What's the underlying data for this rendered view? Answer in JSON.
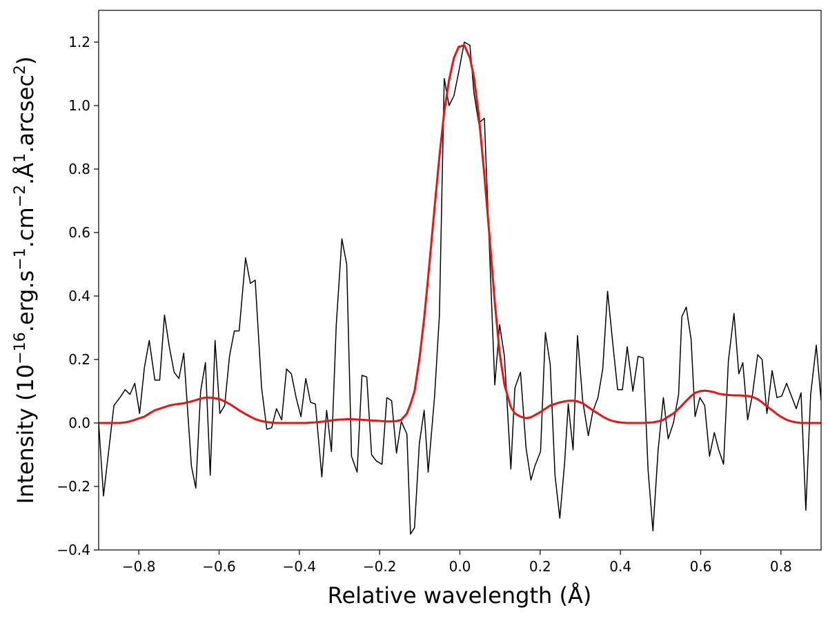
{
  "chart_data": {
    "type": "line",
    "xlabel": "Relative wavelength (Å)",
    "ylabel": [
      {
        "text": "Intensity (10"
      },
      {
        "text": "−16",
        "sup": true
      },
      {
        "text": ".erg.s"
      },
      {
        "text": "−1",
        "sup": true
      },
      {
        "text": ".cm"
      },
      {
        "text": "−2",
        "sup": true
      },
      {
        "text": ".Å"
      },
      {
        "text": "1",
        "sup": true
      },
      {
        "text": ".arcsec"
      },
      {
        "text": "2",
        "sup": true
      },
      {
        "text": ")"
      }
    ],
    "xlim": [
      -0.9,
      0.9
    ],
    "ylim": [
      -0.4,
      1.3
    ],
    "xticks": [
      {
        "value": -0.8,
        "label": "−0.8"
      },
      {
        "value": -0.6,
        "label": "−0.6"
      },
      {
        "value": -0.4,
        "label": "−0.4"
      },
      {
        "value": -0.2,
        "label": "−0.2"
      },
      {
        "value": 0,
        "label": "0.0"
      },
      0.2,
      0.4,
      0.6,
      0.8
    ],
    "yticks": [
      {
        "value": -0.4,
        "label": "−0.4"
      },
      {
        "value": -0.2,
        "label": "−0.2"
      },
      {
        "value": 0,
        "label": "0.0"
      },
      0.2,
      0.4,
      0.6,
      0.8,
      {
        "value": 1,
        "label": "1.0"
      },
      1.2
    ],
    "grid": false,
    "x": [
      -0.9,
      -0.888,
      -0.878,
      -0.862,
      -0.847,
      -0.834,
      -0.822,
      -0.81,
      -0.798,
      -0.786,
      -0.774,
      -0.76,
      -0.748,
      -0.736,
      -0.724,
      -0.712,
      -0.7,
      -0.688,
      -0.669,
      -0.658,
      -0.646,
      -0.634,
      -0.622,
      -0.61,
      -0.598,
      -0.586,
      -0.574,
      -0.562,
      -0.55,
      -0.534,
      -0.522,
      -0.51,
      -0.494,
      -0.481,
      -0.469,
      -0.457,
      -0.444,
      -0.432,
      -0.42,
      -0.408,
      -0.396,
      -0.384,
      -0.372,
      -0.36,
      -0.344,
      -0.332,
      -0.32,
      -0.308,
      -0.294,
      -0.282,
      -0.27,
      -0.256,
      -0.244,
      -0.232,
      -0.22,
      -0.208,
      -0.194,
      -0.182,
      -0.17,
      -0.158,
      -0.146,
      -0.132,
      -0.123,
      -0.113,
      -0.101,
      -0.089,
      -0.079,
      -0.063,
      -0.051,
      -0.039,
      -0.027,
      -0.015,
      -0.003,
      0.011,
      0.025,
      0.035,
      0.047,
      0.061,
      0.073,
      0.087,
      0.099,
      0.111,
      0.127,
      0.137,
      0.151,
      0.165,
      0.177,
      0.187,
      0.201,
      0.213,
      0.225,
      0.237,
      0.249,
      0.261,
      0.27,
      0.282,
      0.293,
      0.306,
      0.32,
      0.331,
      0.344,
      0.356,
      0.368,
      0.381,
      0.393,
      0.405,
      0.417,
      0.431,
      0.444,
      0.457,
      0.469,
      0.481,
      0.494,
      0.507,
      0.519,
      0.532,
      0.545,
      0.553,
      0.564,
      0.576,
      0.586,
      0.598,
      0.61,
      0.622,
      0.634,
      0.645,
      0.657,
      0.669,
      0.683,
      0.695,
      0.705,
      0.717,
      0.729,
      0.742,
      0.753,
      0.765,
      0.778,
      0.79,
      0.802,
      0.814,
      0.826,
      0.838,
      0.85,
      0.862,
      0.874,
      0.888,
      0.9
    ],
    "series": [
      {
        "color": "#000000",
        "width": 1.5,
        "values": [
          0.0,
          -0.23,
          -0.12,
          0.055,
          0.08,
          0.105,
          0.09,
          0.125,
          0.03,
          0.175,
          0.26,
          0.135,
          0.135,
          0.34,
          0.24,
          0.16,
          0.14,
          0.22,
          -0.135,
          -0.205,
          0.1,
          0.19,
          -0.165,
          0.26,
          0.03,
          0.055,
          0.21,
          0.29,
          0.29,
          0.52,
          0.44,
          0.45,
          0.11,
          -0.02,
          -0.015,
          0.045,
          0.01,
          0.17,
          0.155,
          0.08,
          0.02,
          0.14,
          0.065,
          0.06,
          -0.17,
          0.04,
          -0.09,
          0.31,
          0.58,
          0.5,
          -0.105,
          -0.155,
          0.15,
          0.145,
          -0.1,
          -0.12,
          -0.13,
          0.08,
          0.07,
          -0.095,
          0.005,
          -0.035,
          -0.35,
          -0.33,
          -0.065,
          0.04,
          -0.155,
          0.085,
          0.34,
          1.085,
          1.0,
          1.03,
          1.105,
          1.2,
          1.19,
          1.04,
          0.945,
          0.96,
          0.57,
          0.12,
          0.31,
          0.21,
          -0.145,
          0.11,
          0.16,
          -0.08,
          -0.18,
          -0.135,
          -0.09,
          0.285,
          0.185,
          -0.165,
          -0.3,
          -0.125,
          0.06,
          -0.085,
          0.275,
          0.07,
          -0.04,
          0.035,
          0.08,
          0.17,
          0.415,
          0.25,
          0.105,
          0.105,
          0.24,
          0.1,
          0.21,
          0.205,
          -0.15,
          -0.34,
          -0.085,
          0.08,
          -0.05,
          0.0,
          0.09,
          0.335,
          0.365,
          0.265,
          0.02,
          0.08,
          0.055,
          -0.105,
          -0.03,
          -0.085,
          -0.13,
          0.195,
          0.345,
          0.155,
          0.19,
          0.01,
          0.09,
          0.215,
          0.2,
          0.03,
          0.165,
          0.08,
          0.085,
          0.125,
          0.085,
          0.045,
          0.095,
          -0.275,
          0.09,
          0.245,
          0.07
        ]
      },
      {
        "color": "#ee1111",
        "width": 3,
        "values": [
          0,
          0,
          0,
          0,
          0,
          0.002,
          0.005,
          0.01,
          0.015,
          0.02,
          0.03,
          0.04,
          0.045,
          0.05,
          0.055,
          0.058,
          0.06,
          0.062,
          0.068,
          0.072,
          0.077,
          0.08,
          0.08,
          0.078,
          0.075,
          0.068,
          0.06,
          0.05,
          0.04,
          0.028,
          0.02,
          0.012,
          0.006,
          0.003,
          0.001,
          0,
          0,
          0,
          0,
          0,
          0,
          0,
          0.001,
          0.002,
          0.004,
          0.006,
          0.008,
          0.01,
          0.011,
          0.012,
          0.012,
          0.011,
          0.01,
          0.009,
          0.008,
          0.007,
          0.006,
          0.005,
          0.005,
          0.006,
          0.01,
          0.03,
          0.06,
          0.1,
          0.2,
          0.33,
          0.46,
          0.68,
          0.84,
          0.98,
          1.08,
          1.15,
          1.185,
          1.19,
          1.15,
          1.09,
          0.97,
          0.78,
          0.6,
          0.38,
          0.22,
          0.12,
          0.05,
          0.03,
          0.02,
          0.015,
          0.018,
          0.025,
          0.035,
          0.045,
          0.055,
          0.06,
          0.065,
          0.068,
          0.07,
          0.07,
          0.068,
          0.062,
          0.05,
          0.04,
          0.03,
          0.02,
          0.012,
          0.006,
          0.003,
          0.001,
          0,
          0,
          0,
          0,
          0.001,
          0.002,
          0.005,
          0.01,
          0.02,
          0.03,
          0.045,
          0.055,
          0.07,
          0.085,
          0.095,
          0.1,
          0.102,
          0.1,
          0.097,
          0.092,
          0.09,
          0.088,
          0.087,
          0.087,
          0.086,
          0.085,
          0.082,
          0.075,
          0.065,
          0.052,
          0.04,
          0.028,
          0.018,
          0.01,
          0.005,
          0.002,
          0,
          0,
          0,
          0,
          0
        ]
      }
    ]
  }
}
